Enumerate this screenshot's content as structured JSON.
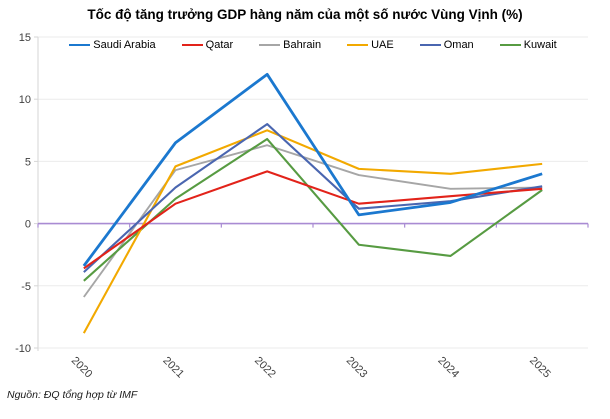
{
  "source": "Nguồn: ĐQ tổng hợp từ IMF",
  "colors": {
    "zero_axis": "#a98bd3",
    "gridline": "#ebebeb",
    "y_axis": "#d6d6d6",
    "tick_label": "#3f3f3f",
    "title": "#000000"
  },
  "chart_data": {
    "type": "line",
    "title": "Tốc độ tăng trưởng GDP hàng năm của một số nước Vùng Vịnh (%)",
    "xlabel": "",
    "ylabel": "",
    "categories": [
      "2020",
      "2021",
      "2022",
      "2023",
      "2024",
      "2025"
    ],
    "series": [
      {
        "name": "Saudi Arabia",
        "color": "#1b78cf",
        "stroke_width": 2.8,
        "values": [
          -3.4,
          6.5,
          12.0,
          0.7,
          1.7,
          4.0
        ]
      },
      {
        "name": "Qatar",
        "color": "#e2231a",
        "stroke_width": 2.1,
        "values": [
          -3.6,
          1.6,
          4.2,
          1.6,
          2.2,
          2.8
        ]
      },
      {
        "name": "Bahrain",
        "color": "#a6a6a6",
        "stroke_width": 1.9,
        "values": [
          -5.9,
          4.3,
          6.3,
          3.9,
          2.8,
          2.9
        ]
      },
      {
        "name": "UAE",
        "color": "#f2a900",
        "stroke_width": 2.1,
        "values": [
          -8.8,
          4.6,
          7.5,
          4.4,
          4.0,
          4.8
        ]
      },
      {
        "name": "Oman",
        "color": "#4a66b0",
        "stroke_width": 2.1,
        "values": [
          -3.9,
          2.9,
          8.0,
          1.2,
          1.8,
          3.0
        ]
      },
      {
        "name": "Kuwait",
        "color": "#579b42",
        "stroke_width": 2.1,
        "values": [
          -4.6,
          2.0,
          6.8,
          -1.7,
          -2.6,
          2.7
        ]
      }
    ],
    "draw_order": [
      "Bahrain",
      "Kuwait",
      "UAE",
      "Oman",
      "Qatar",
      "Saudi Arabia"
    ],
    "ylim": [
      -10,
      15
    ],
    "yticks": [
      15,
      10,
      5,
      0,
      -5,
      -10
    ],
    "grid": true,
    "legend_position": "top",
    "zero_line_color": "#a98bd3"
  }
}
